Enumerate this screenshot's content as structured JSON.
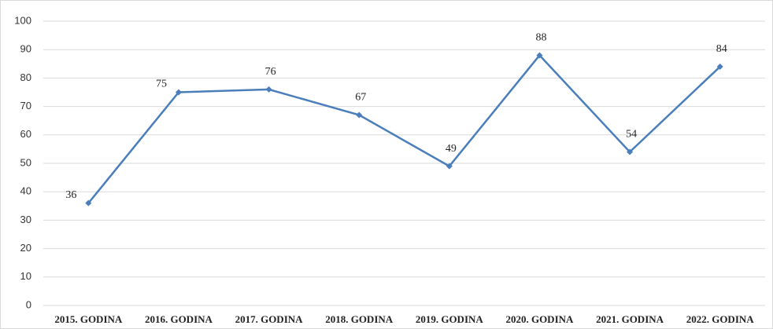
{
  "chart_data": {
    "type": "line",
    "categories": [
      "2015. GODINA",
      "2016. GODINA",
      "2017. GODINA",
      "2018. GODINA",
      "2019. GODINA",
      "2020. GODINA",
      "2021. GODINA",
      "2022. GODINA"
    ],
    "series": [
      {
        "color": "#4a7ebb",
        "values": [
          36,
          75,
          76,
          67,
          49,
          88,
          54,
          84
        ]
      }
    ],
    "ylim": [
      0,
      100
    ],
    "yticks": [
      0,
      10,
      20,
      30,
      40,
      50,
      60,
      70,
      80,
      90,
      100
    ],
    "grid": true
  }
}
